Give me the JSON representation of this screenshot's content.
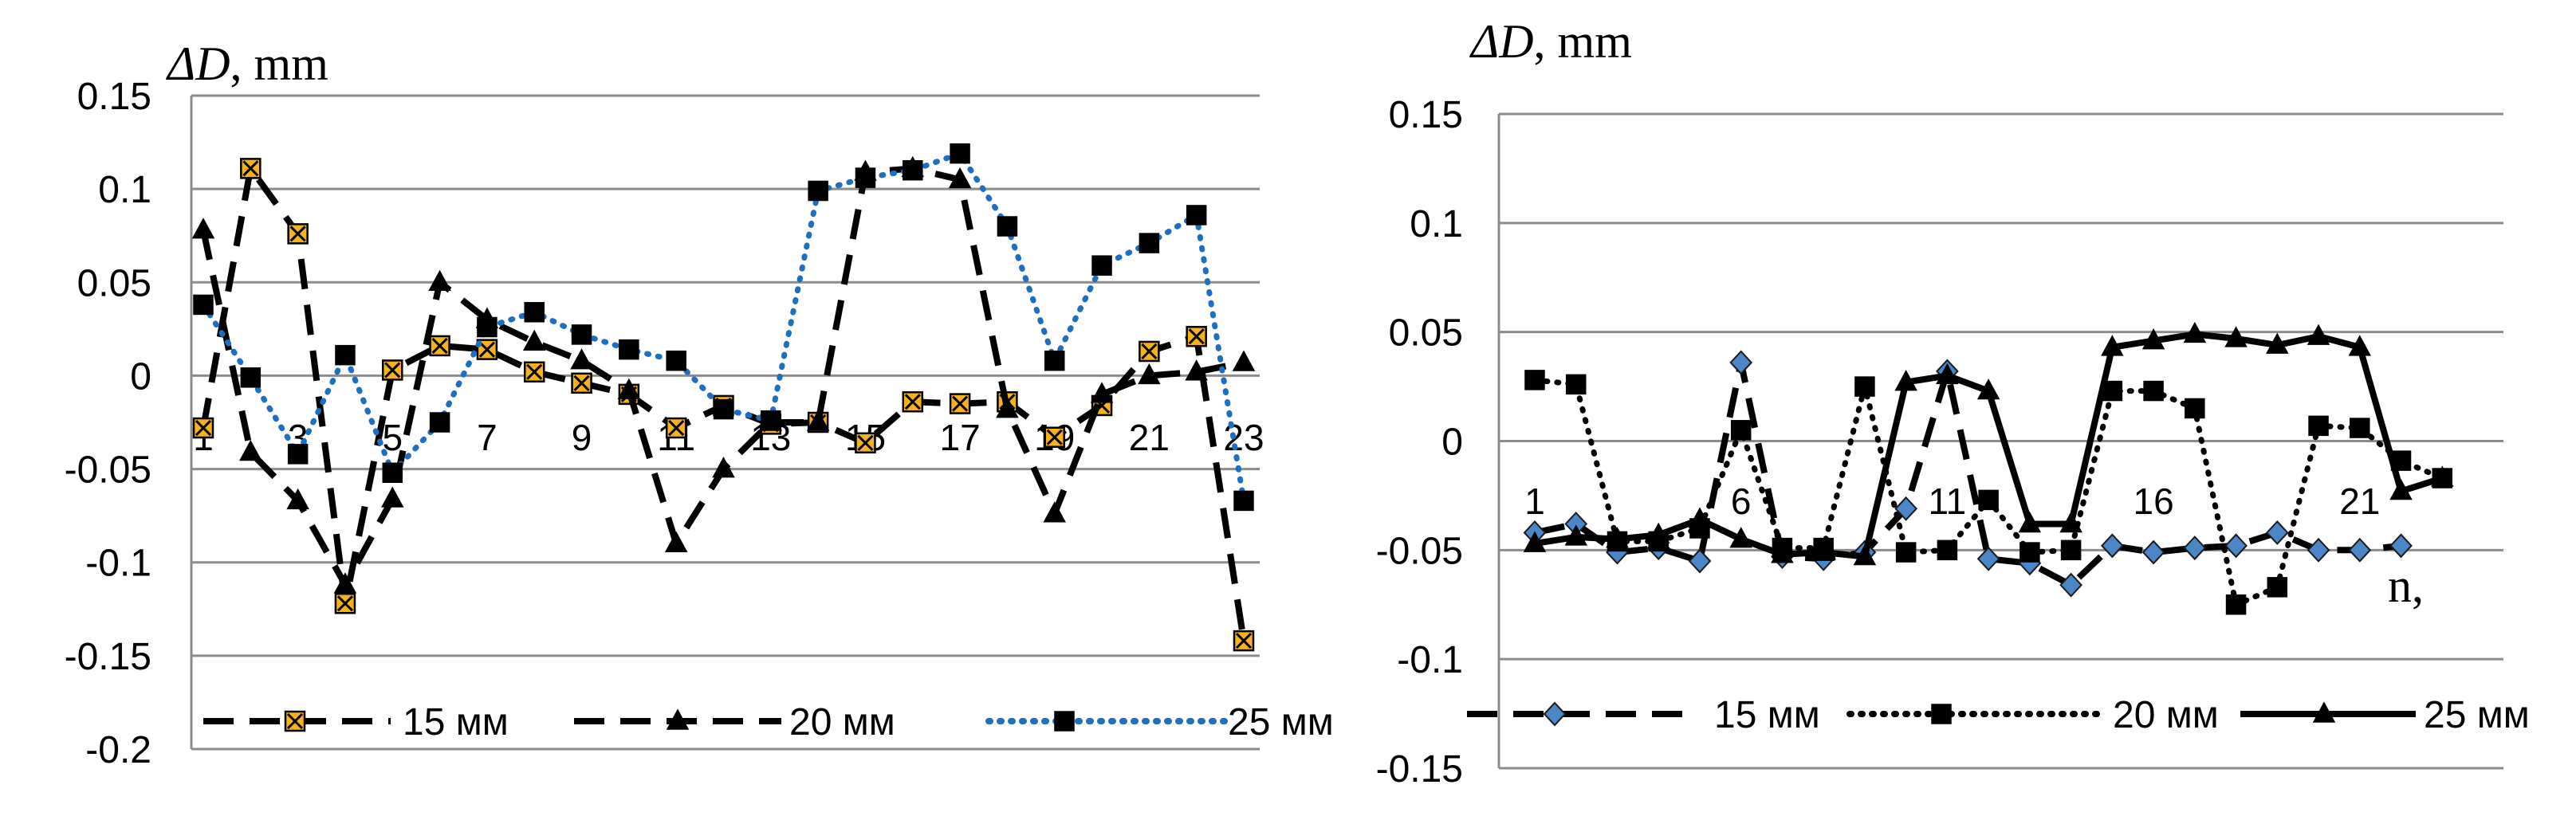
{
  "charts": [
    {
      "type": "line",
      "ylabel_italic": "ΔD",
      "ylabel_rest": ", mm",
      "xlabel": "",
      "ylim": [
        -0.2,
        0.15
      ],
      "yticks": [
        0.15,
        0.1,
        0.05,
        0,
        -0.05,
        -0.1,
        -0.15,
        -0.2
      ],
      "ytick_labels": [
        "0.15",
        "0.1",
        "0.05",
        "0",
        "-0.05",
        "-0.1",
        "-0.15",
        "-0.2"
      ],
      "xlim": [
        1,
        23
      ],
      "xtick_labels": [
        "1",
        "3",
        "5",
        "7",
        "9",
        "11",
        "13",
        "15",
        "17",
        "19",
        "21",
        "23"
      ],
      "xtick_values": [
        1,
        3,
        5,
        7,
        9,
        11,
        13,
        15,
        17,
        19,
        21,
        23
      ],
      "series": [
        {
          "name": "15 мм",
          "style": "dashed",
          "color": "#000000",
          "marker": "xsquare",
          "marker_fill": "#f5b21b",
          "values": [
            -0.028,
            0.111,
            0.076,
            -0.122,
            0.003,
            0.016,
            0.014,
            0.002,
            -0.004,
            -0.01,
            -0.028,
            -0.016,
            -0.026,
            -0.025,
            -0.036,
            -0.014,
            -0.015,
            -0.014,
            -0.033,
            -0.016,
            0.013,
            0.021,
            -0.142
          ]
        },
        {
          "name": "20 мм",
          "style": "dashed",
          "color": "#000000",
          "marker": "triangle",
          "marker_fill": "#000000",
          "values": [
            0.078,
            -0.041,
            -0.067,
            -0.112,
            -0.066,
            0.05,
            0.03,
            0.018,
            0.008,
            -0.008,
            -0.09,
            -0.05,
            -0.025,
            -0.025,
            0.109,
            0.111,
            0.105,
            -0.018,
            -0.074,
            -0.01,
            0.0,
            0.002,
            0.007
          ]
        },
        {
          "name": "25 мм",
          "style": "dotted",
          "color": "#1f6fc0",
          "marker": "square",
          "marker_fill": "#000000",
          "values": [
            0.038,
            -0.001,
            -0.042,
            0.011,
            -0.052,
            -0.025,
            0.026,
            0.034,
            0.022,
            0.014,
            0.008,
            -0.018,
            -0.024,
            0.099,
            0.106,
            0.11,
            0.119,
            0.08,
            0.008,
            0.059,
            0.071,
            0.086,
            -0.067
          ]
        }
      ]
    },
    {
      "type": "line",
      "ylabel_italic": "ΔD",
      "ylabel_rest": ", mm",
      "xlabel": "n,",
      "ylim": [
        -0.15,
        0.15
      ],
      "yticks": [
        0.15,
        0.1,
        0.05,
        0,
        -0.05,
        -0.1,
        -0.15
      ],
      "ytick_labels": [
        "0.15",
        "0.1",
        "0.05",
        "0",
        "-0.05",
        "-0.1",
        "-0.15"
      ],
      "xlim": [
        1,
        24
      ],
      "xtick_labels": [
        "1",
        "6",
        "11",
        "16",
        "21"
      ],
      "xtick_values": [
        1,
        6,
        11,
        16,
        21
      ],
      "series": [
        {
          "name": "15 мм",
          "style": "dashed",
          "color": "#000000",
          "marker": "diamond",
          "marker_fill": "#4a86c8",
          "values": [
            -0.042,
            -0.038,
            -0.051,
            -0.049,
            -0.055,
            0.036,
            -0.053,
            -0.054,
            -0.051,
            -0.031,
            0.032,
            -0.054,
            -0.056,
            -0.066,
            -0.048,
            -0.051,
            -0.049,
            -0.048,
            -0.042,
            -0.05,
            -0.05,
            -0.048
          ]
        },
        {
          "name": "20 мм",
          "style": "dotted",
          "color": "#000000",
          "marker": "square",
          "marker_fill": "#000000",
          "values": [
            0.028,
            0.026,
            -0.046,
            -0.046,
            -0.04,
            0.005,
            -0.049,
            -0.049,
            0.025,
            -0.051,
            -0.05,
            -0.027,
            -0.051,
            -0.05,
            0.023,
            0.023,
            0.015,
            -0.075,
            -0.067,
            0.007,
            0.006,
            -0.009,
            -0.017
          ]
        },
        {
          "name": "25 мм",
          "style": "solid",
          "color": "#000000",
          "marker": "triangle",
          "marker_fill": "#000000",
          "values": [
            -0.047,
            -0.044,
            -0.045,
            -0.043,
            -0.036,
            -0.045,
            -0.052,
            -0.051,
            -0.053,
            0.027,
            0.03,
            0.023,
            -0.038,
            -0.038,
            0.043,
            0.046,
            0.049,
            0.047,
            0.044,
            0.048,
            0.043,
            -0.023,
            -0.017
          ]
        }
      ]
    }
  ]
}
